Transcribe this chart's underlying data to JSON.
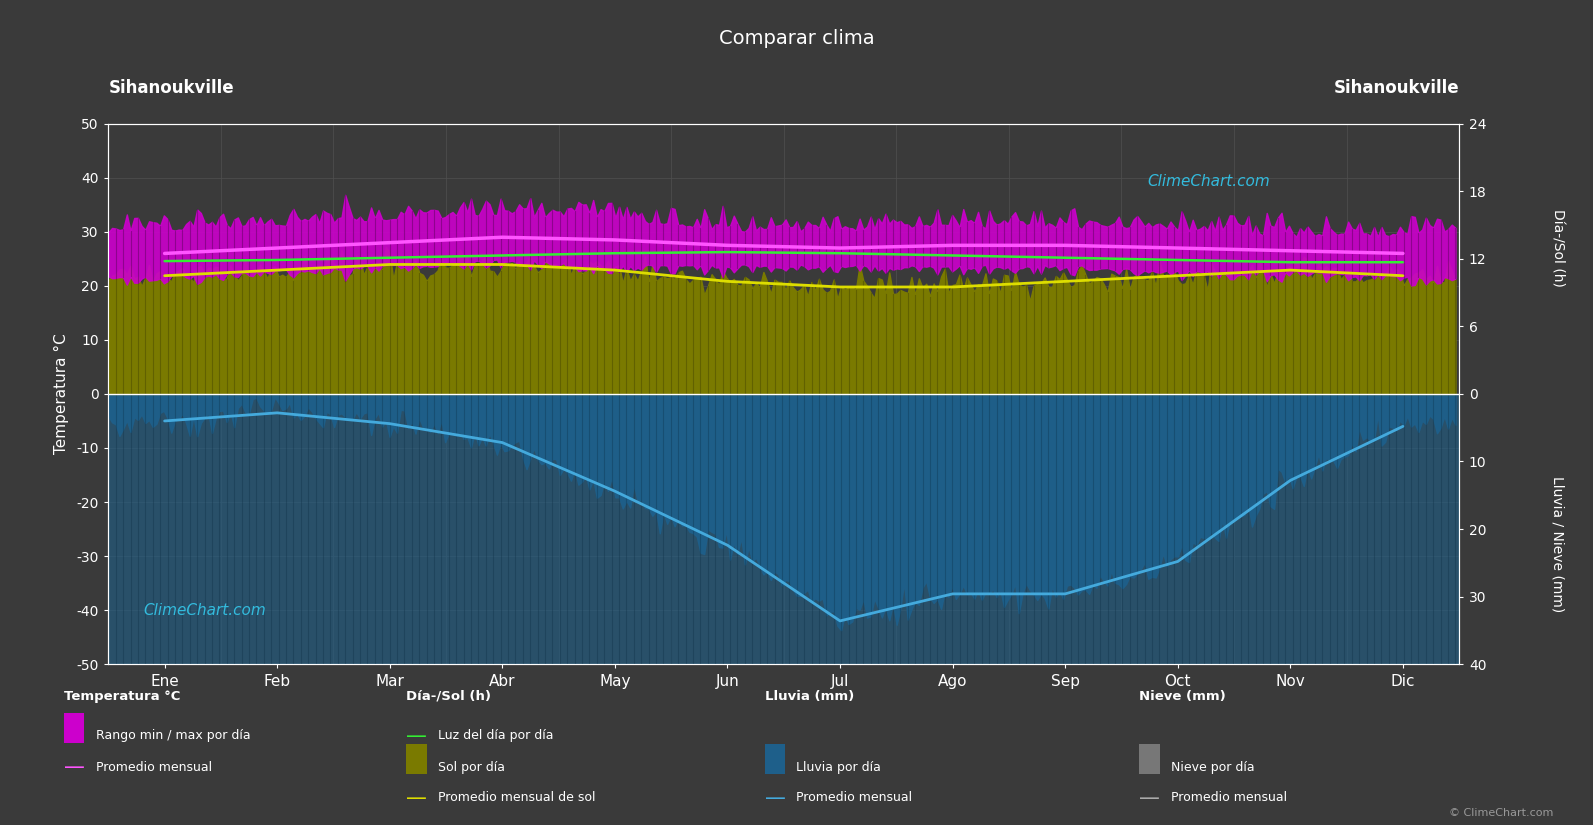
{
  "title": "Comparar clima",
  "location_left": "Sihanoukville",
  "location_right": "Sihanoukville",
  "months": [
    "Ene",
    "Feb",
    "Mar",
    "Abr",
    "May",
    "Jun",
    "Jul",
    "Ago",
    "Sep",
    "Oct",
    "Nov",
    "Dic"
  ],
  "temp_ylim": [
    -50,
    50
  ],
  "background_color": "#3a3a3a",
  "grid_color": "#505050",
  "temp_monthly_avg": [
    26.0,
    27.0,
    28.0,
    29.0,
    28.5,
    27.5,
    27.0,
    27.5,
    27.5,
    27.0,
    26.5,
    26.0
  ],
  "temp_daily_max": [
    30,
    31,
    32,
    33,
    32,
    30,
    30,
    30.5,
    30.5,
    30,
    29,
    29
  ],
  "temp_daily_min": [
    22,
    23,
    24,
    25,
    24,
    24,
    24,
    24,
    24,
    23,
    23,
    22
  ],
  "daylight_hours": [
    11.8,
    11.9,
    12.1,
    12.3,
    12.5,
    12.6,
    12.5,
    12.3,
    12.1,
    11.9,
    11.7,
    11.7
  ],
  "sunshine_hours": [
    10.5,
    11.0,
    11.5,
    11.5,
    11.0,
    10.0,
    9.5,
    9.5,
    10.0,
    10.5,
    11.0,
    10.5
  ],
  "rainfall_line_vals": [
    -5.0,
    -3.5,
    -5.5,
    -9.0,
    -18.0,
    -28.0,
    -42.0,
    -37.0,
    -37.0,
    -31.0,
    -16.0,
    -6.0
  ],
  "rain_noise_scale": 1.5,
  "temp_noise_scale": 1.8,
  "sun_noise_scale": 0.6,
  "colors": {
    "temp_band_fill": "#cc00cc",
    "temp_avg_line": "#ff55ff",
    "daylight_line": "#33ee33",
    "sunshine_fill": "#7a7a00",
    "sunshine_line": "#dddd00",
    "rain_fill": "#1e5f8a",
    "rain_line": "#44aadd",
    "snow_fill": "#777777",
    "snow_line": "#aaaaaa"
  },
  "sun_to_temp_scale": 2.0833,
  "rain_to_temp_scale": 1.25,
  "right_top_ticks": [
    0,
    6,
    12,
    18,
    24
  ],
  "right_bot_ticks": [
    0,
    10,
    20,
    30,
    40
  ],
  "legend_items": {
    "col1_title": "Temperatura °C",
    "col1_item1": "Rango min / max por día",
    "col1_item2": "Promedio mensual",
    "col2_title": "Día-/Sol (h)",
    "col2_item1": "Luz del día por día",
    "col2_item2": "Sol por día",
    "col2_item3": "Promedio mensual de sol",
    "col3_title": "Lluvia (mm)",
    "col3_item1": "Lluvia por día",
    "col3_item2": "Promedio mensual",
    "col4_title": "Nieve (mm)",
    "col4_item1": "Nieve por día",
    "col4_item2": "Promedio mensual"
  }
}
